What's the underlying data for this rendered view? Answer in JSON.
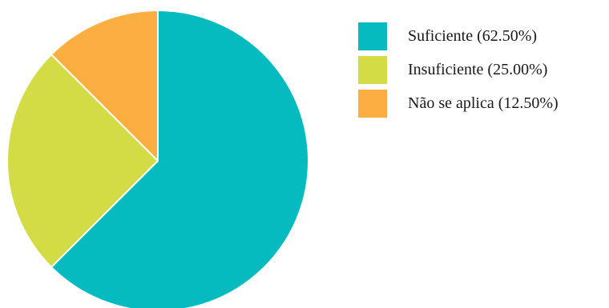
{
  "chart_data": {
    "type": "pie",
    "categories": [
      "Suficiente",
      "Insuficiente",
      "Não se aplica"
    ],
    "values": [
      62.5,
      25.0,
      12.5
    ],
    "colors": [
      "#05BBC0",
      "#D3DB45",
      "#FBAF41"
    ],
    "title": "",
    "legend_position": "right",
    "legend": [
      "Suficiente (62.50%)",
      "Insuficiente (25.00%)",
      "Não se aplica (12.50%)"
    ]
  }
}
